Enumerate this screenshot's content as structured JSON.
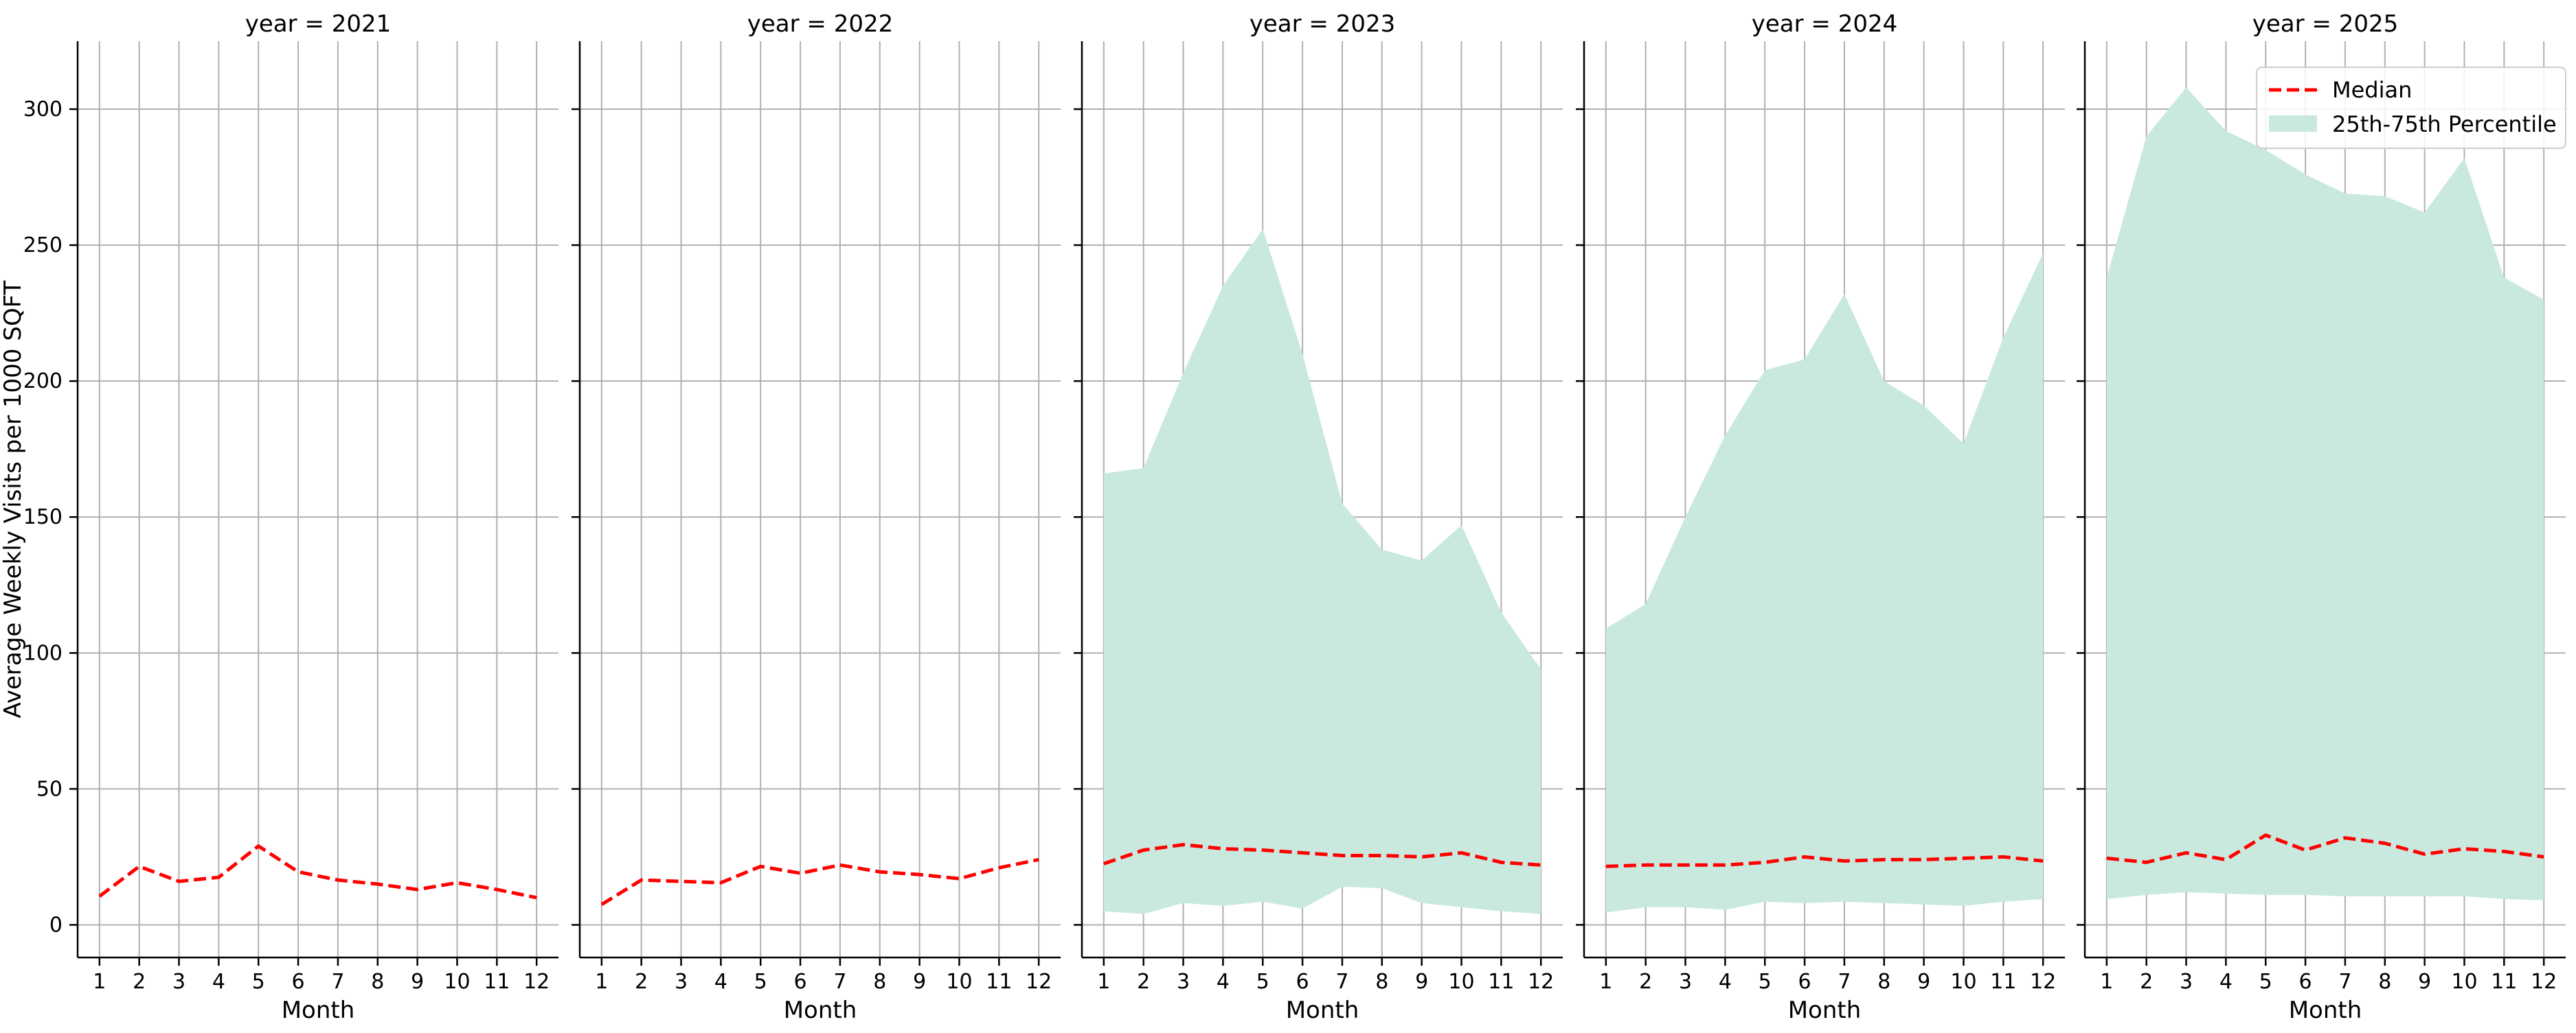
{
  "chart_data": {
    "type": "area",
    "ylabel": "Average Weekly Visits per 1000 SQFT",
    "xlabel": "Month",
    "shared_y": true,
    "ylim": [
      -12,
      325
    ],
    "yticks": [
      0,
      50,
      100,
      150,
      200,
      250,
      300
    ],
    "xticks": [
      1,
      2,
      3,
      4,
      5,
      6,
      7,
      8,
      9,
      10,
      11,
      12
    ],
    "grid": true,
    "legend": {
      "placement": "top-right",
      "entries": [
        {
          "label": "Median",
          "style": "dashed-line",
          "color": "#ff0000"
        },
        {
          "label": "25th-75th Percentile",
          "style": "fill",
          "color": "#c9e9df"
        }
      ]
    },
    "colors": {
      "median": "#ff0000",
      "band": "#c9e9df",
      "grid": "#b0b0b0"
    },
    "panels": [
      {
        "title": "year = 2021",
        "x": [
          1,
          2,
          3,
          4,
          5,
          6,
          7,
          8,
          9,
          10,
          11,
          12
        ],
        "median": [
          10.5,
          21.5,
          16,
          17.5,
          29,
          19.5,
          16.5,
          15,
          13,
          15.5,
          13,
          10
        ],
        "p25": null,
        "p75": null
      },
      {
        "title": "year = 2022",
        "x": [
          1,
          2,
          3,
          4,
          5,
          6,
          7,
          8,
          9,
          10,
          11,
          12
        ],
        "median": [
          7.5,
          16.5,
          16,
          15.5,
          21.5,
          19,
          22,
          19.5,
          18.5,
          17,
          21,
          24
        ],
        "p25": null,
        "p75": null
      },
      {
        "title": "year = 2023",
        "x": [
          1,
          2,
          3,
          4,
          5,
          6,
          7,
          8,
          9,
          10,
          11,
          12
        ],
        "median": [
          22.5,
          27.5,
          29.5,
          28,
          27.5,
          26.5,
          25.5,
          25.5,
          25,
          26.5,
          23,
          22
        ],
        "p25": [
          5,
          4,
          8,
          7,
          8.5,
          6,
          14,
          13.5,
          8,
          6.5,
          5,
          4
        ],
        "p75": [
          166,
          168,
          203,
          235,
          256,
          210,
          155,
          138,
          134,
          147,
          115,
          94
        ]
      },
      {
        "title": "year = 2024",
        "x": [
          1,
          2,
          3,
          4,
          5,
          6,
          7,
          8,
          9,
          10,
          11,
          12
        ],
        "median": [
          21.5,
          22,
          22,
          22,
          23,
          25,
          23.5,
          24,
          24,
          24.5,
          25,
          23.5
        ],
        "p25": [
          4.5,
          6.5,
          6.5,
          5.5,
          8.5,
          8,
          8.5,
          8,
          7.5,
          7,
          8.5,
          9.5
        ],
        "p75": [
          109,
          118,
          150,
          180,
          204,
          208,
          232,
          200,
          191,
          177,
          216,
          247
        ]
      },
      {
        "title": "year = 2025",
        "x": [
          1,
          2,
          3,
          4,
          5,
          6,
          7,
          8,
          9,
          10,
          11,
          12
        ],
        "median": [
          24.5,
          23,
          26.5,
          24,
          33,
          27.5,
          32,
          30,
          26,
          28,
          27,
          25
        ],
        "p25": [
          9.5,
          11,
          12,
          11.5,
          11,
          11,
          10.5,
          10.5,
          10.5,
          10.5,
          9.5,
          9
        ],
        "p75": [
          238,
          290,
          308,
          292,
          285,
          276,
          269,
          268,
          262,
          282,
          238,
          230
        ]
      }
    ]
  }
}
